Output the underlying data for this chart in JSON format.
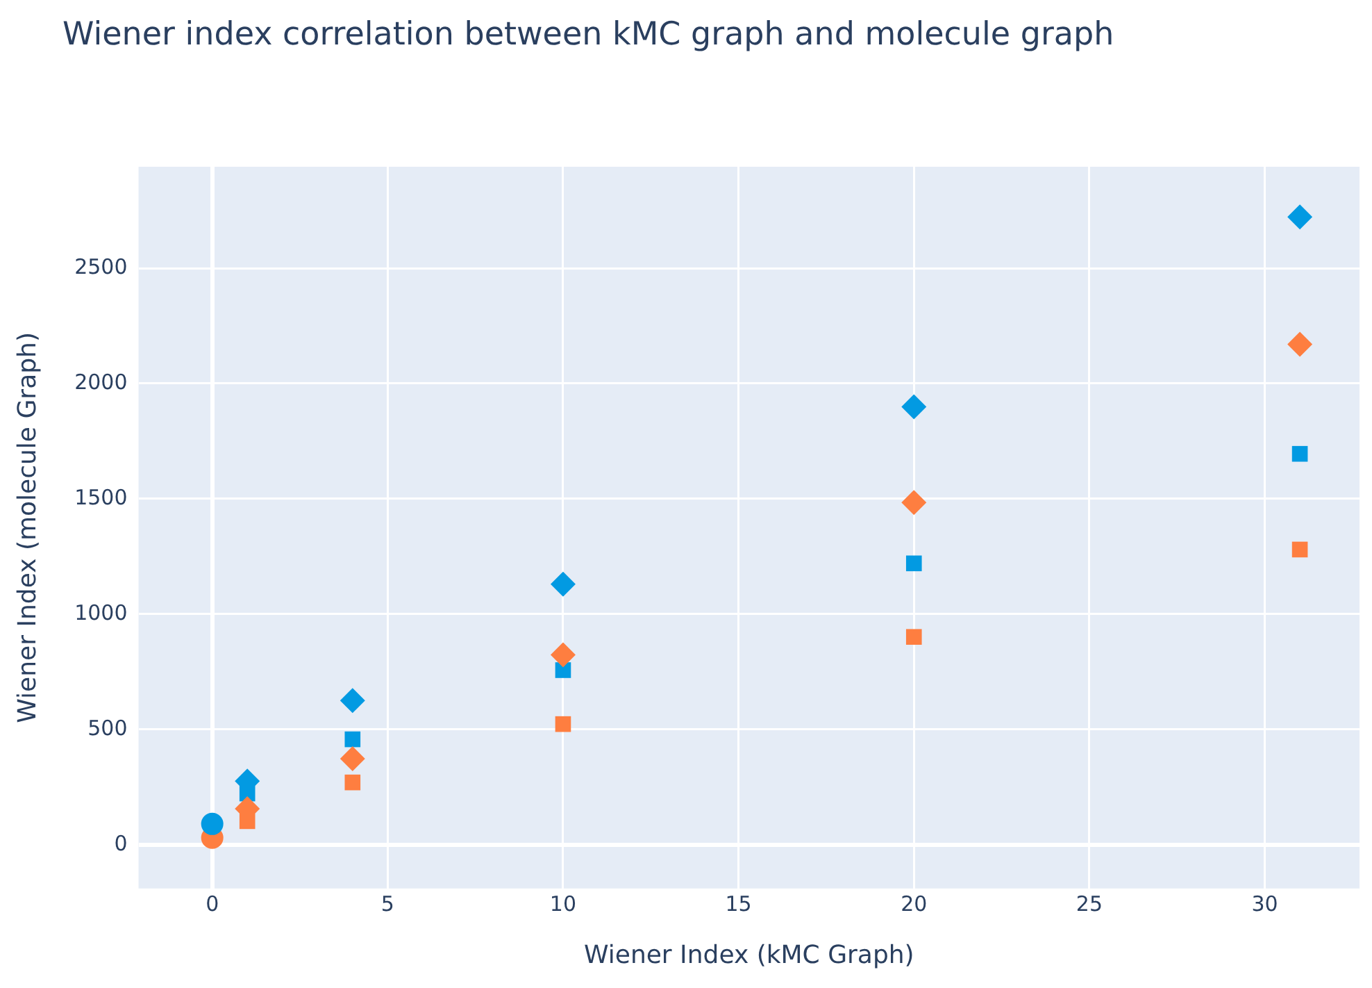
{
  "chart_data": {
    "type": "scatter",
    "title": "Wiener index correlation between kMC graph and molecule graph",
    "xlabel": "Wiener Index (kMC Graph)",
    "ylabel": "Wiener Index (molecule Graph)",
    "xlim": [
      -2.1,
      32.7
    ],
    "ylim": [
      -190,
      2940
    ],
    "xticks": [
      0,
      5,
      10,
      15,
      20,
      25,
      30
    ],
    "yticks": [
      0,
      500,
      1000,
      1500,
      2000,
      2500
    ],
    "grid": true,
    "legend": false,
    "series": [
      {
        "color": "#029ae2",
        "marker": "diamond",
        "x": [
          1,
          4,
          10,
          20,
          31
        ],
        "values": [
          276,
          625,
          1130,
          1899,
          2722
        ]
      },
      {
        "color": "#fe7e40",
        "marker": "diamond",
        "x": [
          1,
          4,
          10,
          20,
          31
        ],
        "values": [
          156,
          373,
          823,
          1484,
          2170
        ]
      },
      {
        "color": "#029ae2",
        "marker": "square",
        "x": [
          1,
          4,
          10,
          20,
          31
        ],
        "values": [
          222,
          457,
          757,
          1220,
          1695
        ]
      },
      {
        "color": "#fe7e40",
        "marker": "square",
        "x": [
          1,
          4,
          10,
          20,
          31
        ],
        "values": [
          102,
          270,
          523,
          901,
          1280
        ]
      },
      {
        "color": "#029ae2",
        "marker": "circle",
        "x": [
          0
        ],
        "values": [
          90
        ]
      },
      {
        "color": "#fe7e40",
        "marker": "circle",
        "x": [
          0
        ],
        "values": [
          30
        ]
      }
    ]
  }
}
